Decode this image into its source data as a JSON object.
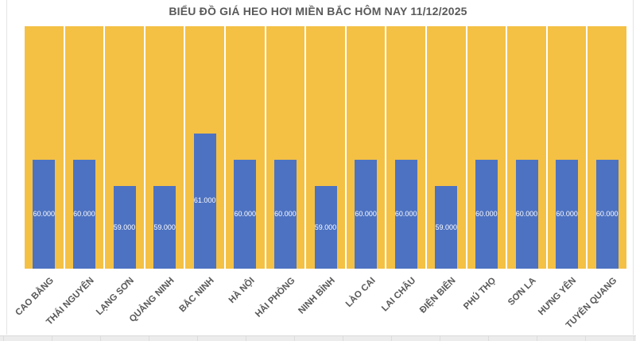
{
  "chart_data": {
    "type": "bar",
    "title": "BIỂU ĐỒ GIÁ HEO HƠI MIỀN BẮC HÔM NAY 11/12/2025",
    "categories": [
      "CAO BẰNG",
      "THÁI NGUYÊN",
      "LẠNG SƠN",
      "QUẢNG NINH",
      "BẮC NINH",
      "HÀ NỘI",
      "HẢI PHÒNG",
      "NINH BÌNH",
      "LÀO CAI",
      "LAI CHÂU",
      "ĐIỆN BIÊN",
      "PHÚ THỌ",
      "SƠN LA",
      "HƯNG YÊN",
      "TUYÊN QUANG"
    ],
    "values": [
      60000,
      60000,
      59000,
      59000,
      61000,
      60000,
      60000,
      59000,
      60000,
      60000,
      59000,
      60000,
      60000,
      60000,
      60000
    ],
    "value_labels": [
      "60.000",
      "60.000",
      "59.000",
      "59.000",
      "61.000",
      "60.000",
      "60.000",
      "59.000",
      "60.000",
      "60.000",
      "59.000",
      "60.000",
      "60.000",
      "60.000",
      "60.000"
    ],
    "xlabel": "",
    "ylabel": "",
    "ylim": [
      55880,
      65060
    ],
    "grid": false,
    "legend": "none",
    "colors": {
      "bar": "#4D72C1",
      "background_column": "#F4C145",
      "bar_value_text": "#FFFFFF",
      "title_text": "#595959",
      "axis_label_text": "#595959",
      "page_background": "#FFFFFF",
      "table_strip": "#ECECEC"
    }
  }
}
